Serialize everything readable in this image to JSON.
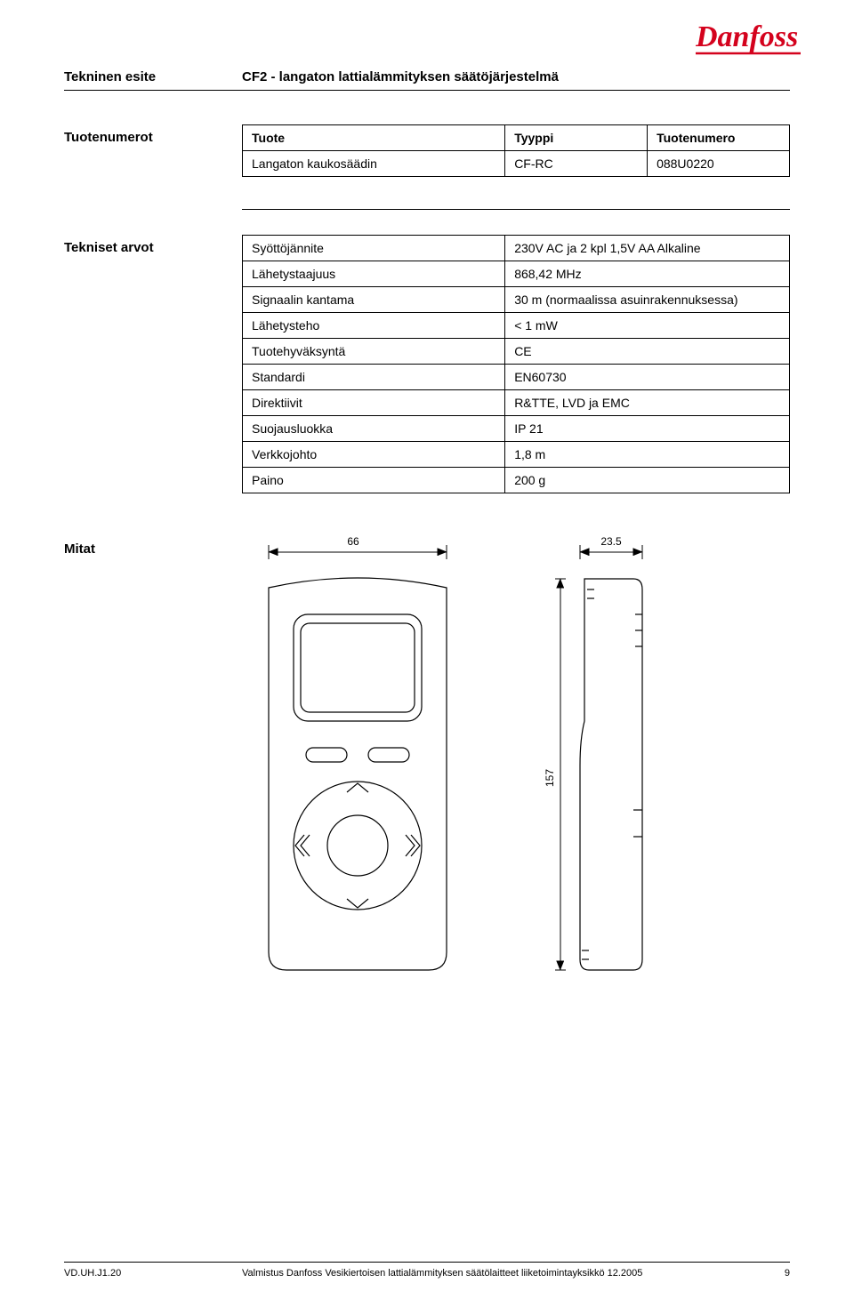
{
  "header": {
    "doc_type": "Tekninen esite",
    "title": "CF2 - langaton lattialämmityksen säätöjärjestelmä"
  },
  "logo": {
    "name": "Danfoss",
    "color": "#d4021d"
  },
  "product_section": {
    "label": "Tuotenumerot",
    "table": {
      "columns": [
        "Tuote",
        "Tyyppi",
        "Tuotenumero"
      ],
      "rows": [
        [
          "Langaton kaukosäädin",
          "CF-RC",
          "088U0220"
        ]
      ],
      "col_widths": [
        "48%",
        "26%",
        "26%"
      ]
    }
  },
  "spec_section": {
    "label": "Tekniset arvot",
    "table": {
      "rows": [
        [
          "Syöttöjännite",
          "230V AC ja 2 kpl 1,5V AA Alkaline"
        ],
        [
          "Lähetystaajuus",
          "868,42 MHz"
        ],
        [
          "Signaalin kantama",
          "30 m (normaalissa asuinrakennuksessa)"
        ],
        [
          "Lähetysteho",
          "< 1 mW"
        ],
        [
          "Tuotehyväksyntä",
          "CE"
        ],
        [
          "Standardi",
          "EN60730"
        ],
        [
          "Direktiivit",
          "R&TTE, LVD ja EMC"
        ],
        [
          "Suojausluokka",
          "IP 21"
        ],
        [
          "Verkkojohto",
          "1,8 m"
        ],
        [
          "Paino",
          "200 g"
        ]
      ],
      "col_widths": [
        "48%",
        "52%"
      ]
    }
  },
  "dimensions_section": {
    "label": "Mitat",
    "width_mm": "66",
    "depth_mm": "23.5",
    "height_mm": "157"
  },
  "footer": {
    "code": "VD.UH.J1.20",
    "text": "Valmistus Danfoss Vesikiertoisen lattialämmityksen säätölaitteet liiketoimintayksikkö  12.2005",
    "page": "9"
  },
  "colors": {
    "text": "#000000",
    "line": "#000000",
    "background": "#ffffff"
  }
}
